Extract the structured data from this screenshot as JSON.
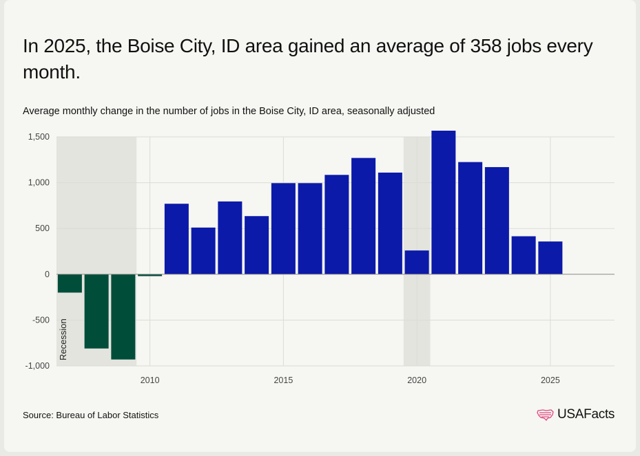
{
  "header": {
    "title": "In 2025, the Boise City, ID area gained an average of 358 jobs every month.",
    "subtitle": "Average monthly change in the number of jobs in the Boise City, ID area, seasonally adjusted"
  },
  "footer": {
    "source": "Source: Bureau of Labor Statistics",
    "logo_text": "USAFacts",
    "logo_icon": "us-map-stripes-icon"
  },
  "colors": {
    "positive": "#0b1aa8",
    "negative": "#004d3a",
    "recession": "#e4e4df",
    "logo_accent": "#e0487f"
  },
  "chart_data": {
    "type": "bar",
    "title": "",
    "xlabel": "",
    "ylabel": "",
    "ylim": [
      -1000,
      1500
    ],
    "yticks": [
      -1000,
      -500,
      0,
      500,
      1000,
      1500
    ],
    "ytick_labels": [
      "-1,000",
      "-500",
      "0",
      "500",
      "1,000",
      "1,500"
    ],
    "xticks": [
      2010,
      2015,
      2020,
      2025
    ],
    "xtick_labels": [
      "2010",
      "2015",
      "2020",
      "2025"
    ],
    "grid": true,
    "categories": [
      2007,
      2008,
      2009,
      2010,
      2011,
      2012,
      2013,
      2014,
      2015,
      2016,
      2017,
      2018,
      2019,
      2020,
      2021,
      2022,
      2023,
      2024,
      2025
    ],
    "values": [
      -200,
      -810,
      -930,
      -20,
      770,
      510,
      795,
      635,
      995,
      995,
      1085,
      1270,
      1110,
      260,
      1595,
      1225,
      1170,
      415,
      358
    ],
    "recessions": [
      {
        "start": 2007,
        "end": 2009,
        "label": "Recession"
      },
      {
        "start": 2020,
        "end": 2020,
        "label": ""
      }
    ]
  }
}
